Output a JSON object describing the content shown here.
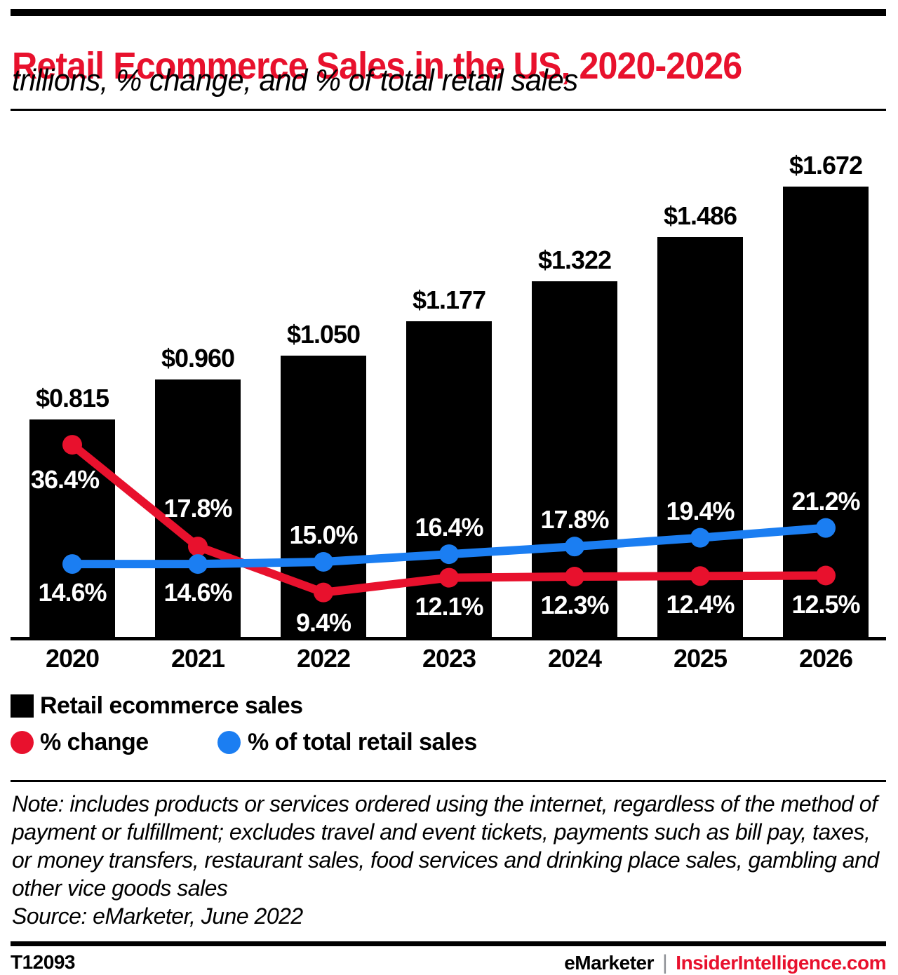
{
  "header": {
    "title": "Retail Ecommerce Sales in the US, 2020-2026",
    "subtitle": "trillions, % change, and % of total retail sales"
  },
  "colors": {
    "red": "#e8112d",
    "blue": "#1b7ef2",
    "bar_black": "#000000"
  },
  "chart_data": {
    "type": "bar",
    "categories": [
      "2020",
      "2021",
      "2022",
      "2023",
      "2024",
      "2025",
      "2026"
    ],
    "series": [
      {
        "name": "Retail ecommerce sales",
        "type": "bar",
        "color": "#000000",
        "unit": "trillions of US dollars",
        "values": [
          0.815,
          0.96,
          1.05,
          1.177,
          1.322,
          1.486,
          1.672
        ],
        "labels": [
          "$0.815",
          "$0.960",
          "$1.050",
          "$1.177",
          "$1.322",
          "$1.486",
          "$1.672"
        ]
      },
      {
        "name": "% change",
        "type": "line",
        "color": "#e8112d",
        "unit": "percent",
        "values": [
          36.4,
          17.8,
          9.4,
          12.1,
          12.3,
          12.4,
          12.5
        ],
        "labels": [
          "36.4%",
          "17.8%",
          "9.4%",
          "12.1%",
          "12.3%",
          "12.4%",
          "12.5%"
        ]
      },
      {
        "name": "% of total retail sales",
        "type": "line",
        "color": "#1b7ef2",
        "unit": "percent",
        "values": [
          14.6,
          14.6,
          15.0,
          16.4,
          17.8,
          19.4,
          21.2
        ],
        "labels": [
          "14.6%",
          "14.6%",
          "15.0%",
          "16.4%",
          "17.8%",
          "19.4%",
          "21.2%"
        ]
      }
    ],
    "title": "Retail Ecommerce Sales in the US, 2020-2026",
    "subtitle": "trillions, % change, and % of total retail sales",
    "xlabel": "",
    "ylabel": "",
    "grid": false,
    "legend_position": "bottom"
  },
  "legend": {
    "items": [
      {
        "label": "Retail ecommerce sales",
        "swatch": "square",
        "color": "#000000"
      },
      {
        "label": "% change",
        "swatch": "circle",
        "color": "#e8112d"
      },
      {
        "label": "% of total retail sales",
        "swatch": "circle",
        "color": "#1b7ef2"
      }
    ]
  },
  "note": {
    "note_text": "Note: includes products or services ordered using the internet, regardless of the method of payment or fulfillment; excludes travel and event tickets, payments such as bill pay, taxes, or money transfers, restaurant sales, food services and drinking place sales, gambling and other vice goods sales",
    "source_text": "Source: eMarketer, June 2022"
  },
  "footer": {
    "chart_id": "T12093",
    "brand_left": "eMarketer",
    "divider": "|",
    "brand_right": "InsiderIntelligence.com"
  }
}
